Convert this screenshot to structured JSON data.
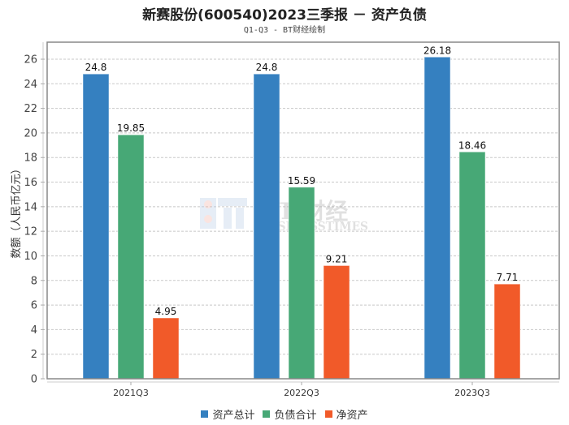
{
  "chart_data": {
    "type": "bar",
    "title": "新赛股份(600540)2023三季报 － 资产负债",
    "subtitle": "Q1-Q3 - BT财经绘制",
    "xlabel": "",
    "ylabel": "数额（人民币亿元）",
    "ylim": [
      0,
      27
    ],
    "yticks": [
      0,
      2,
      4,
      6,
      8,
      10,
      12,
      14,
      16,
      18,
      20,
      22,
      24,
      26
    ],
    "grid": true,
    "legend_position": "bottom-center",
    "categories": [
      "2021Q3",
      "2022Q3",
      "2023Q3"
    ],
    "series": [
      {
        "name": "资产总计",
        "color": "#3580c0",
        "values": [
          24.8,
          24.8,
          26.18
        ]
      },
      {
        "name": "负债合计",
        "color": "#47a876",
        "values": [
          19.85,
          15.59,
          18.46
        ]
      },
      {
        "name": "净资产",
        "color": "#f15a29",
        "values": [
          4.95,
          9.21,
          7.71
        ]
      }
    ],
    "data_labels": [
      [
        "24.8",
        "24.8",
        "26.18"
      ],
      [
        "19.85",
        "15.59",
        "18.46"
      ],
      [
        "4.95",
        "9.21",
        "7.71"
      ]
    ]
  },
  "watermark": {
    "cn": "BT 财经",
    "en": "BUSINESSTIMES"
  }
}
